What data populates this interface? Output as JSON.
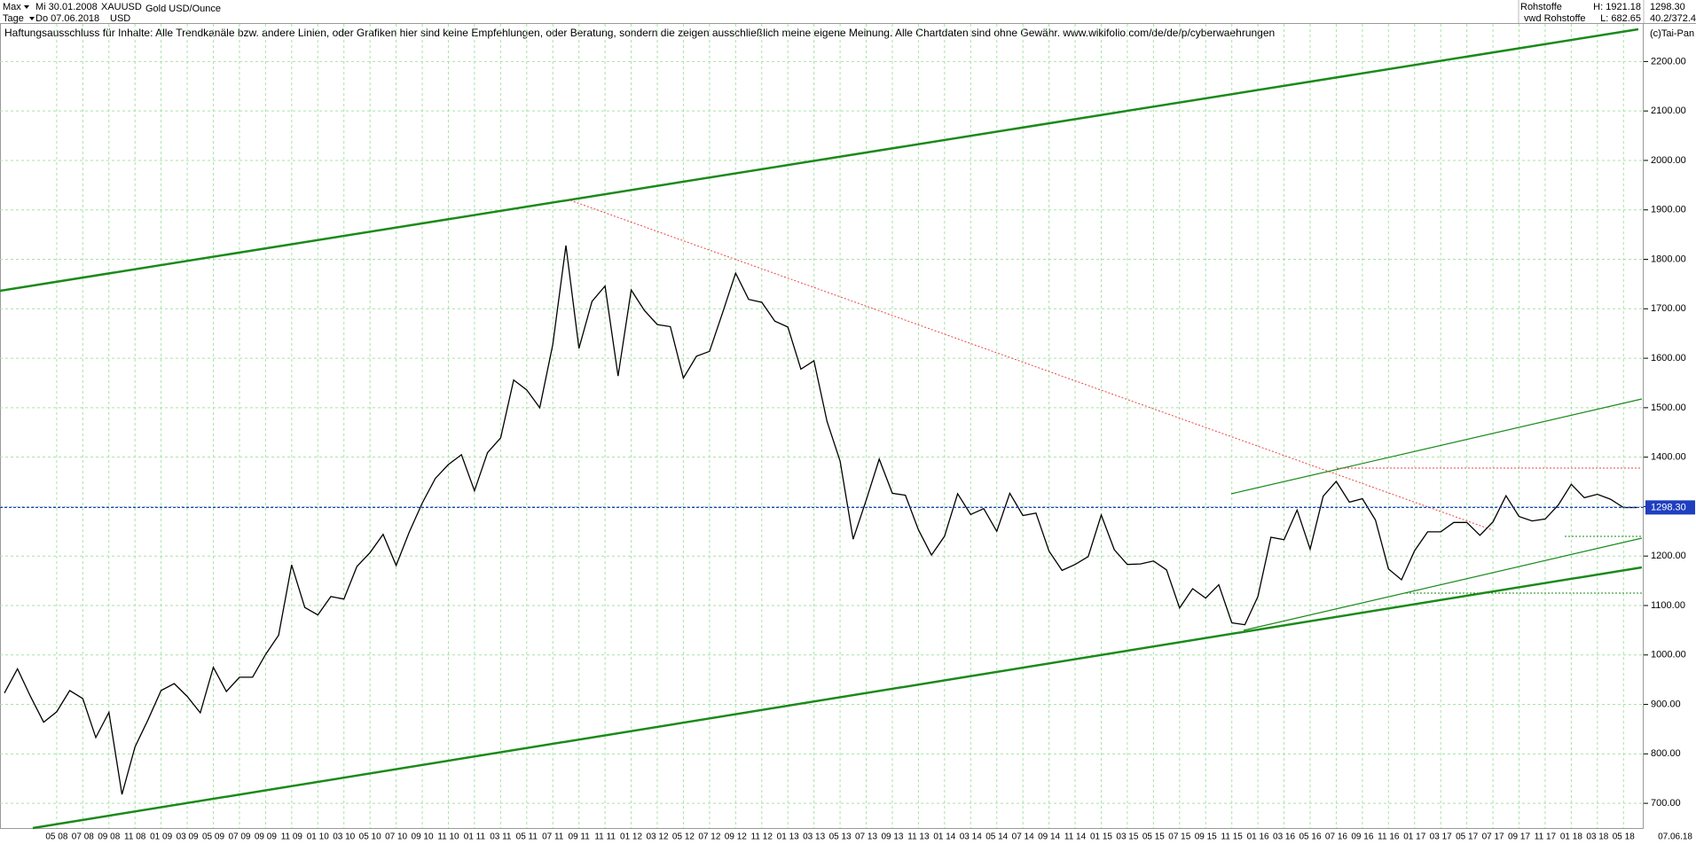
{
  "toolbar": {
    "range": "Max",
    "start_date": "Mi 30.01.2008",
    "symbol": "XAUUSD",
    "name": "Gold USD/Ounce",
    "period": "Tage",
    "end_date": "Do 07.06.2018",
    "currency": "USD",
    "group": "Rohstoffe",
    "high": "H: 1921.18",
    "source": "vwd Rohstoffe",
    "low": "L: 682.65",
    "last": "1298.30",
    "ratio": "40.2/372.4",
    "copyright": "(c)Tai-Pan"
  },
  "chart_data": {
    "type": "line",
    "title": "Haftungsausschluss für Inhalte: Alle Trendkanäle bzw. andere Linien, oder Grafiken hier sind keine Empfehlungen, oder Beratung, sondern die zeigen ausschließlich meine eigene Meinung. Alle Chartdaten sind ohne Gewähr.  www.wikifolio.com/de/de/p/cyberwaehrungen",
    "categories": [
      null,
      null,
      null,
      null,
      "05 08",
      null,
      "07 08",
      null,
      "09 08",
      null,
      "11 08",
      null,
      "01 09",
      null,
      "03 09",
      null,
      "05 09",
      null,
      "07 09",
      null,
      "09 09",
      null,
      "11 09",
      null,
      "01 10",
      null,
      "03 10",
      null,
      "05 10",
      null,
      "07 10",
      null,
      "09 10",
      null,
      "11 10",
      null,
      "01 11",
      null,
      "03 11",
      null,
      "05 11",
      null,
      "07 11",
      null,
      "09 11",
      null,
      "11 11",
      null,
      "01 12",
      null,
      "03 12",
      null,
      "05 12",
      null,
      "07 12",
      null,
      "09 12",
      null,
      "11 12",
      null,
      "01 13",
      null,
      "03 13",
      null,
      "05 13",
      null,
      "07 13",
      null,
      "09 13",
      null,
      "11 13",
      null,
      "01 14",
      null,
      "03 14",
      null,
      "05 14",
      null,
      "07 14",
      null,
      "09 14",
      null,
      "11 14",
      null,
      "01 15",
      null,
      "03 15",
      null,
      "05 15",
      null,
      "07 15",
      null,
      "09 15",
      null,
      "11 15",
      null,
      "01 16",
      null,
      "03 16",
      null,
      "05 16",
      null,
      "07 16",
      null,
      "09 16",
      null,
      "11 16",
      null,
      "01 17",
      null,
      "03 17",
      null,
      "05 17",
      null,
      "07 17",
      null,
      "09 17",
      null,
      "11 17",
      null,
      "01 18",
      null,
      "03 18",
      null,
      "05 18",
      null
    ],
    "x_end_label": "07.06.18",
    "series": [
      {
        "name": "Gold USD/Ounce",
        "color": "#000000",
        "values": [
          923,
          972,
          916,
          864,
          885,
          928,
          912,
          833,
          884,
          718,
          814,
          869,
          928,
          942,
          916,
          883,
          975,
          926,
          955,
          955,
          1001,
          1040,
          1182,
          1096,
          1081,
          1118,
          1113,
          1179,
          1207,
          1244,
          1181,
          1248,
          1307,
          1357,
          1385,
          1405,
          1332,
          1409,
          1439,
          1556,
          1536,
          1500,
          1628,
          1828,
          1620,
          1715,
          1746,
          1564,
          1738,
          1697,
          1668,
          1664,
          1560,
          1604,
          1614,
          1692,
          1772,
          1719,
          1713,
          1675,
          1663,
          1578,
          1595,
          1472,
          1392,
          1234,
          1313,
          1396,
          1327,
          1323,
          1253,
          1202,
          1240,
          1326,
          1284,
          1296,
          1250,
          1327,
          1282,
          1287,
          1210,
          1171,
          1183,
          1199,
          1283,
          1213,
          1183,
          1184,
          1190,
          1172,
          1095,
          1134,
          1115,
          1142,
          1065,
          1061,
          1118,
          1238,
          1233,
          1293,
          1214,
          1321,
          1351,
          1309,
          1316,
          1273,
          1174,
          1152,
          1211,
          1249,
          1249,
          1268,
          1268,
          1242,
          1269,
          1322,
          1280,
          1271,
          1275,
          1303,
          1345,
          1318,
          1325,
          1315,
          1298,
          1298
        ]
      }
    ],
    "current_price": {
      "value": 1298.3,
      "label": "1298.30"
    },
    "ylim": [
      650,
      2276
    ],
    "yticks": [
      {
        "value": 700,
        "label": "700.00"
      },
      {
        "value": 800,
        "label": "800.00"
      },
      {
        "value": 900,
        "label": "900.00"
      },
      {
        "value": 1000,
        "label": "1000.00"
      },
      {
        "value": 1100,
        "label": "1100.00"
      },
      {
        "value": 1200,
        "label": "1200.00"
      },
      {
        "value": 1300,
        "label": "1300.00"
      },
      {
        "value": 1400,
        "label": "1400.00"
      },
      {
        "value": 1500,
        "label": "1500.00"
      },
      {
        "value": 1600,
        "label": "1600.00"
      },
      {
        "value": 1700,
        "label": "1700.00"
      },
      {
        "value": 1800,
        "label": "1800.00"
      },
      {
        "value": 1900,
        "label": "1900.00"
      },
      {
        "value": 2000,
        "label": "2000.00"
      },
      {
        "value": 2100,
        "label": "2100.00"
      },
      {
        "value": 2200,
        "label": "2200.00"
      }
    ],
    "grid": true,
    "grid_color": "#a6e3a6"
  }
}
